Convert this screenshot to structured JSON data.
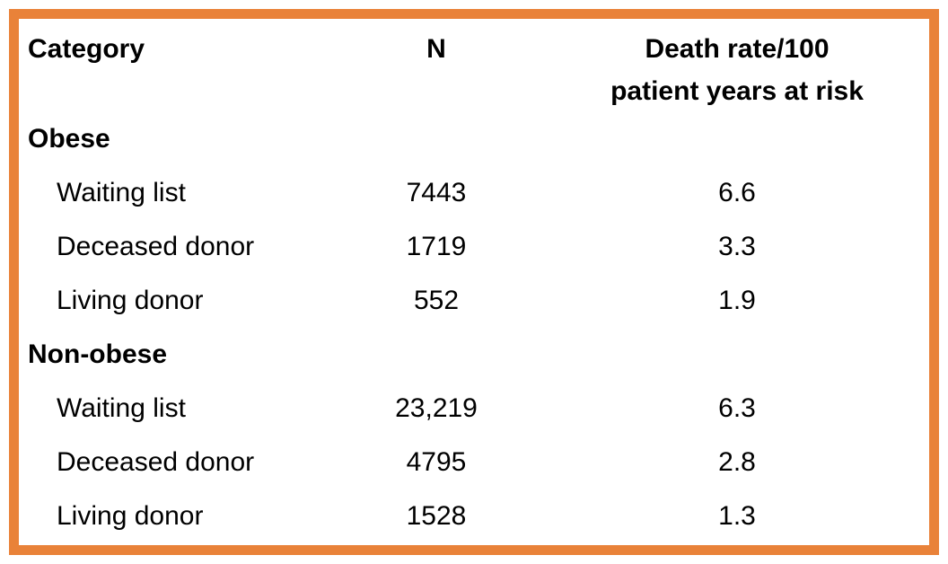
{
  "style": {
    "border_color": "#E98239",
    "background": "#FFFFFF",
    "text_color": "#000000"
  },
  "chart_data": {
    "type": "table",
    "title": "",
    "columns": {
      "category": "Category",
      "n": "N",
      "rate": "Death rate/100 patient years at risk",
      "rate_line1": "Death rate/100",
      "rate_line2": "patient years at risk"
    },
    "groups": [
      {
        "label": "Obese",
        "rows": [
          {
            "category": "Waiting list",
            "n": "7443",
            "rate": "6.6"
          },
          {
            "category": "Deceased donor",
            "n": "1719",
            "rate": "3.3"
          },
          {
            "category": "Living donor",
            "n": "552",
            "rate": "1.9"
          }
        ]
      },
      {
        "label": "Non-obese",
        "rows": [
          {
            "category": "Waiting list",
            "n": "23,219",
            "rate": "6.3"
          },
          {
            "category": "Deceased donor",
            "n": "4795",
            "rate": "2.8"
          },
          {
            "category": "Living donor",
            "n": "1528",
            "rate": "1.3"
          }
        ]
      }
    ]
  }
}
